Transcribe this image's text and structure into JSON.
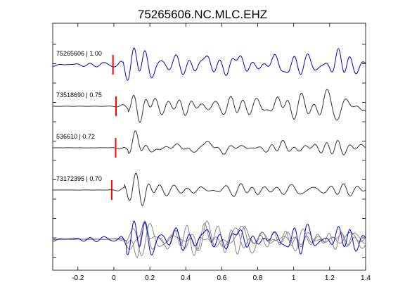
{
  "chart_data": {
    "type": "line",
    "title": "75265606.NC.MLC.EHZ",
    "xlabel": "",
    "ylabel": "",
    "xlim": [
      -0.34,
      1.4
    ],
    "x_ticks": [
      -0.2,
      0,
      0.2,
      0.4,
      0.6,
      0.8,
      1,
      1.2,
      1.4
    ],
    "x_tick_labels": [
      "-0.2",
      "0",
      "0.2",
      "0.4",
      "0.6",
      "0.8",
      "1",
      "1.2",
      "1.4"
    ],
    "grid": false,
    "colors": {
      "reference": "#0000cc",
      "trace": "#333333",
      "overlay": "#888888",
      "pick": "#ff0000"
    },
    "traces": [
      {
        "label": "75265606 | 1.00",
        "color": "#0000cc",
        "pick_time": -0.005,
        "onset": 0.05,
        "pre_amp": 0.5,
        "post_amp": 1.0,
        "bursts": [
          [
            0.14,
            1.0,
            0.09
          ],
          [
            0.5,
            0.8,
            0.08
          ],
          [
            0.68,
            0.8,
            0.07
          ],
          [
            0.95,
            0.7,
            0.08
          ],
          [
            1.25,
            1.0,
            0.07
          ]
        ]
      },
      {
        "label": "73518690 | 0.75",
        "color": "#333333",
        "pick_time": 0.012,
        "onset": 0.08,
        "pre_amp": 0.04,
        "post_amp": 0.9,
        "bursts": [
          [
            0.16,
            1.0,
            0.08
          ],
          [
            0.4,
            0.6,
            0.07
          ],
          [
            0.65,
            0.8,
            0.07
          ],
          [
            0.92,
            0.6,
            0.06
          ],
          [
            1.2,
            0.6,
            0.07
          ]
        ]
      },
      {
        "label": "536610 | 0.72",
        "color": "#333333",
        "pick_time": 0.01,
        "onset": 0.08,
        "pre_amp": 0.04,
        "post_amp": 0.9,
        "bursts": [
          [
            0.14,
            1.0,
            0.07
          ],
          [
            0.55,
            0.45,
            0.08
          ],
          [
            0.9,
            0.4,
            0.08
          ],
          [
            1.22,
            0.5,
            0.08
          ]
        ]
      },
      {
        "label": "73172395 | 0.70",
        "color": "#333333",
        "pick_time": -0.012,
        "onset": 0.06,
        "pre_amp": 0.02,
        "post_amp": 0.85,
        "bursts": [
          [
            0.15,
            1.0,
            0.08
          ],
          [
            0.45,
            0.5,
            0.07
          ],
          [
            0.75,
            0.55,
            0.07
          ],
          [
            1.05,
            0.5,
            0.07
          ],
          [
            1.25,
            0.6,
            0.06
          ]
        ]
      }
    ],
    "overlay": {
      "onset": 0.07,
      "pre_amp": 0.5,
      "post_amp": 1.0,
      "bursts": [
        [
          0.15,
          1.0,
          0.08
        ],
        [
          0.5,
          0.7,
          0.08
        ],
        [
          0.7,
          0.6,
          0.07
        ],
        [
          1.0,
          0.6,
          0.07
        ],
        [
          1.28,
          0.6,
          0.07
        ]
      ]
    }
  }
}
